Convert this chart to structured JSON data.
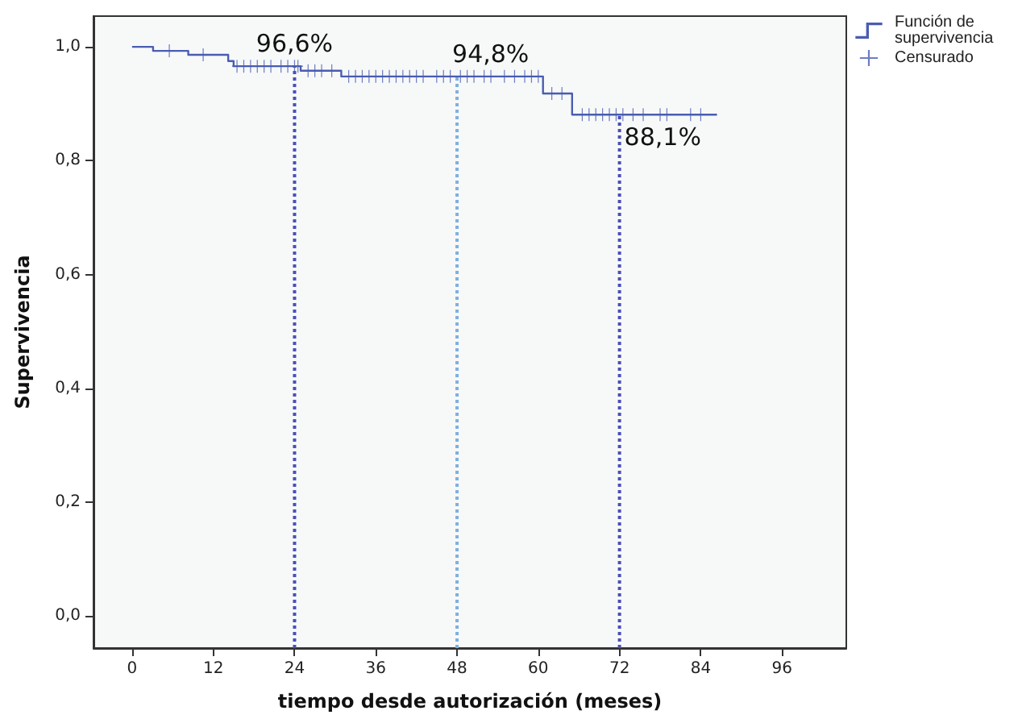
{
  "chart_data": {
    "type": "step",
    "xlabel": "tiempo desde autorización (meses)",
    "ylabel": "Supervivencia",
    "xlim": [
      -5.7,
      105.5
    ],
    "xticks": [
      0,
      12,
      24,
      36,
      48,
      60,
      72,
      84,
      96
    ],
    "ylim": [
      -0.056,
      1.054
    ],
    "yticks": [
      {
        "value": 0,
        "label": "0,0"
      },
      {
        "value": 0.2,
        "label": "0,2"
      },
      {
        "value": 0.4,
        "label": "0,4"
      },
      {
        "value": 0.6,
        "label": "0,6"
      },
      {
        "value": 0.8,
        "label": "0,8"
      },
      {
        "value": 1,
        "label": "1,0"
      }
    ],
    "grid": false,
    "legend": "right",
    "line_style": "solid",
    "series": [
      {
        "name": "Función de supervivencia",
        "color": "#4a5db0",
        "x": [
          0,
          3.1,
          8.3,
          14.2,
          15,
          24.9,
          30.9,
          60.7,
          65,
          86.4
        ],
        "values": [
          1,
          0.993,
          0.986,
          0.975,
          0.966,
          0.958,
          0.948,
          0.918,
          0.881,
          0.881
        ]
      },
      {
        "name": "Censurado",
        "type": "scatter",
        "marker": "cross",
        "color": "#4a5db0",
        "x": [
          5.5,
          10.5,
          15.5,
          16.5,
          17.5,
          18.5,
          19.5,
          20.5,
          22,
          23,
          24,
          24.5,
          26,
          27,
          28,
          29.5,
          32,
          33,
          34,
          35,
          36,
          37,
          38,
          39,
          40,
          41,
          42,
          43,
          45,
          46,
          47,
          48.5,
          49.5,
          50.5,
          52,
          53,
          55,
          56.5,
          58,
          59,
          60,
          62,
          63.5,
          66.5,
          67.5,
          68.5,
          69.5,
          70.5,
          71.5,
          72.5,
          74,
          75.5,
          78,
          79,
          82.5,
          84
        ],
        "values": [
          0.993,
          0.986,
          0.966,
          0.966,
          0.966,
          0.966,
          0.966,
          0.966,
          0.966,
          0.966,
          0.966,
          0.966,
          0.958,
          0.958,
          0.958,
          0.958,
          0.948,
          0.948,
          0.948,
          0.948,
          0.948,
          0.948,
          0.948,
          0.948,
          0.948,
          0.948,
          0.948,
          0.948,
          0.948,
          0.948,
          0.948,
          0.948,
          0.948,
          0.948,
          0.948,
          0.948,
          0.948,
          0.948,
          0.948,
          0.948,
          0.948,
          0.918,
          0.918,
          0.881,
          0.881,
          0.881,
          0.881,
          0.881,
          0.881,
          0.881,
          0.881,
          0.881,
          0.881,
          0.881,
          0.881,
          0.881
        ]
      }
    ],
    "ref_lines": [
      {
        "axis": "x",
        "value": 24,
        "color": "#4b4fb8",
        "line_style": "dotted"
      },
      {
        "axis": "x",
        "value": 48,
        "color": "#7fb0e0",
        "line_style": "dotted"
      },
      {
        "axis": "x",
        "value": 72,
        "color": "#4b4fb8",
        "line_style": "dotted"
      }
    ],
    "annotations": [
      {
        "text": "96,6%",
        "x": 24,
        "y": 0.966
      },
      {
        "text": "94,8%",
        "x": 48,
        "y": 0.948
      },
      {
        "text": "88,1%",
        "x": 72,
        "y": 0.881
      }
    ]
  }
}
